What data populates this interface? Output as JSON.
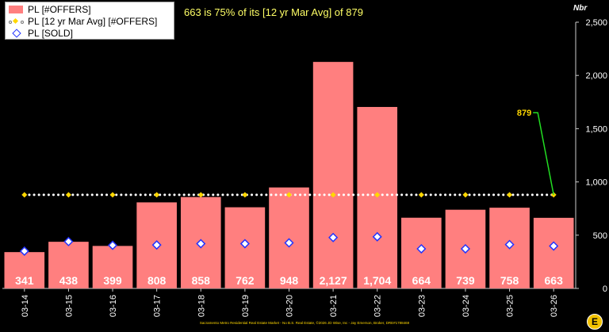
{
  "headline": "663 is 75% of its [12 yr Mar Avg] of 879",
  "unit_label": "Nbr",
  "footer": "Sacramento Metro Residential Real Estate Market - No B.S. Real Estate, ©2026 JD Wise, Inc - Jay Emerson, Broker, DRE#1788469",
  "logo_text": "E",
  "legend": {
    "offers": "PL [#OFFERS]",
    "avg": "PL [12 yr Mar Avg] [#OFFERS]",
    "sold": "PL [SOLD]"
  },
  "colors": {
    "offers_bar": "#ff7f7f",
    "avg_marker": "#ffd700",
    "avg_line": "#ffffff",
    "sold_marker_fill": "#ffffff",
    "sold_marker_stroke": "#2233ff",
    "callout_line": "#22dd22",
    "callout_text": "#ffd700",
    "background": "#000000"
  },
  "chart_data": {
    "type": "bar",
    "categories": [
      "03-14",
      "03-15",
      "03-16",
      "03-17",
      "03-18",
      "03-19",
      "03-20",
      "03-21",
      "03-22",
      "03-23",
      "03-24",
      "03-25",
      "03-26"
    ],
    "series": [
      {
        "name": "PL [#OFFERS]",
        "type": "bar",
        "values": [
          341,
          438,
          399,
          808,
          858,
          762,
          948,
          2127,
          1704,
          664,
          739,
          758,
          663
        ]
      },
      {
        "name": "PL [12 yr Mar Avg] [#OFFERS]",
        "type": "line",
        "values": [
          879,
          879,
          879,
          879,
          879,
          879,
          879,
          879,
          879,
          879,
          879,
          879,
          879
        ]
      },
      {
        "name": "PL [SOLD]",
        "type": "scatter",
        "values": [
          350,
          440,
          405,
          408,
          420,
          420,
          428,
          478,
          485,
          372,
          372,
          412,
          398
        ]
      }
    ],
    "data_labels": [
      "341",
      "438",
      "399",
      "808",
      "858",
      "762",
      "948",
      "2,127",
      "1,704",
      "664",
      "739",
      "758",
      "663"
    ],
    "callout": {
      "label": "879",
      "value": 879
    },
    "ylim": [
      0,
      2500
    ],
    "yticks": [
      0,
      500,
      1000,
      1500,
      2000,
      2500
    ],
    "ytick_labels": [
      "0",
      "500",
      "1,000",
      "1,500",
      "2,000",
      "2,500"
    ],
    "grid": false,
    "legend_position": "top-left"
  }
}
